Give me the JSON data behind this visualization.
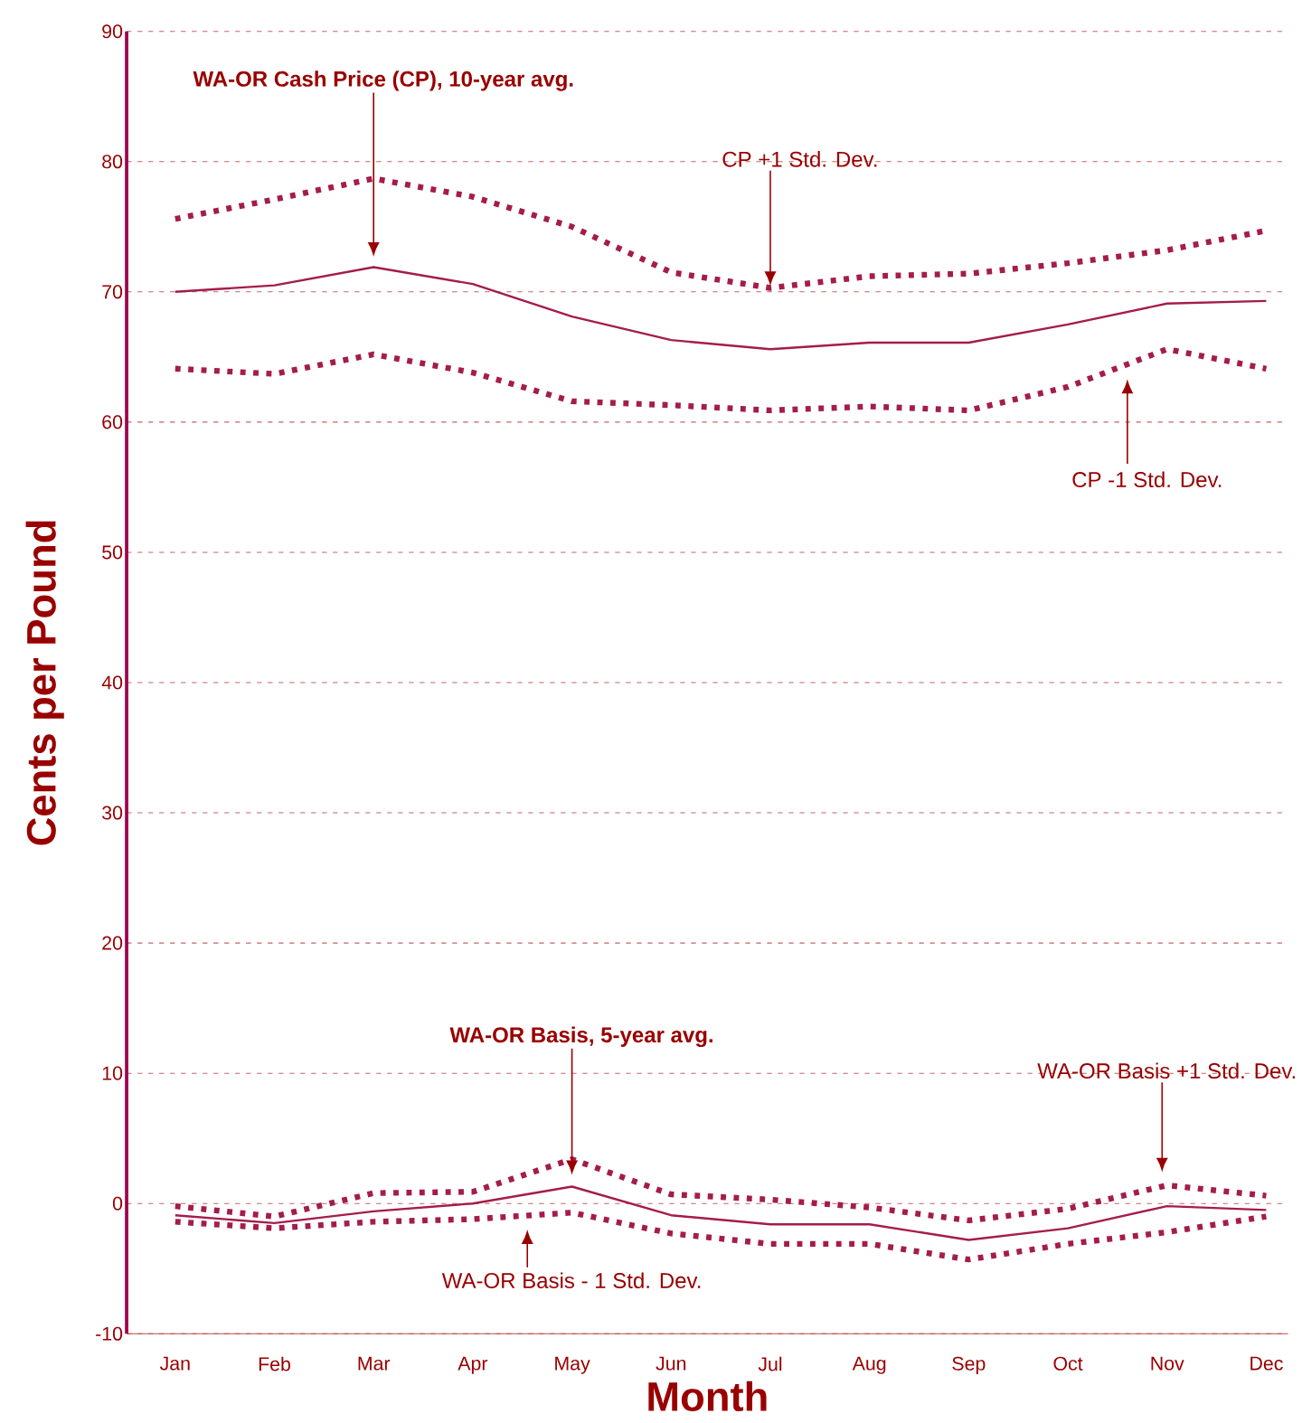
{
  "chart_data": {
    "type": "line",
    "xlabel": "Month",
    "ylabel": "Cents per Pound",
    "categories": [
      "Jan",
      "Feb",
      "Mar",
      "Apr",
      "May",
      "Jun",
      "Jul",
      "Aug",
      "Sep",
      "Oct",
      "Nov",
      "Dec"
    ],
    "series": [
      {
        "color": "#a51c4a",
        "line_style": "solid",
        "values": [
          70.0,
          70.5,
          71.9,
          70.6,
          68.1,
          66.3,
          65.6,
          66.1,
          66.1,
          67.5,
          69.1,
          69.3
        ]
      },
      {
        "color": "#a51c4a",
        "line_style": "dotted",
        "values": [
          75.6,
          77.1,
          78.7,
          77.3,
          75.0,
          71.5,
          70.3,
          71.2,
          71.4,
          72.2,
          73.2,
          74.7
        ]
      },
      {
        "color": "#a51c4a",
        "line_style": "dotted",
        "values": [
          64.1,
          63.7,
          65.2,
          63.8,
          61.6,
          61.3,
          60.9,
          61.2,
          60.9,
          62.7,
          65.6,
          64.1
        ]
      },
      {
        "color": "#a51c4a",
        "line_style": "solid",
        "values": [
          -0.9,
          -1.5,
          -0.6,
          0.0,
          1.3,
          -0.9,
          -1.6,
          -1.6,
          -2.8,
          -1.9,
          -0.2,
          -0.5
        ]
      },
      {
        "color": "#a51c4a",
        "line_style": "dotted",
        "values": [
          -0.2,
          -1.0,
          0.8,
          0.9,
          3.4,
          0.7,
          0.3,
          -0.3,
          -1.3,
          -0.4,
          1.4,
          0.6
        ]
      },
      {
        "color": "#a51c4a",
        "line_style": "dotted",
        "values": [
          -1.4,
          -1.9,
          -1.4,
          -1.2,
          -0.7,
          -2.3,
          -3.1,
          -3.1,
          -4.3,
          -3.1,
          -2.2,
          -1.0
        ]
      }
    ],
    "ylim": [
      -10,
      90
    ],
    "yticks": [
      -10,
      0,
      10,
      20,
      30,
      40,
      50,
      60,
      70,
      80,
      90
    ],
    "grid": "y",
    "marker": "none",
    "annotations": [
      "WA-OR Cash Price (CP), 10-year avg.",
      {
        "text": "CP +1 Std. Dev.",
        "x": "Jul",
        "y": 70.3
      },
      "CP -1 Std. Dev.",
      "WA-OR Basis, 5-year avg.",
      "WA-OR Basis +1 Std. Dev.",
      "WA-OR Basis - 1 Std. Dev."
    ]
  }
}
